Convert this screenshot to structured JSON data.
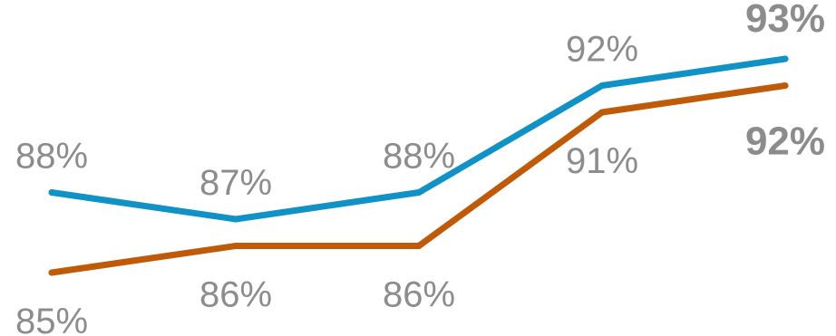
{
  "chart_data": {
    "type": "line",
    "title": "",
    "xlabel": "",
    "ylabel": "",
    "categories": [
      "",
      "",
      "",
      "",
      ""
    ],
    "ylim": [
      84,
      94
    ],
    "grid": false,
    "legend": "none",
    "series": [
      {
        "values": [
          88,
          87,
          88,
          92,
          93
        ],
        "labels": [
          "88%",
          "87%",
          "88%",
          "92%",
          "93%"
        ],
        "color": "#1192c6",
        "label_position": "above"
      },
      {
        "values": [
          85,
          86,
          86,
          91,
          92
        ],
        "labels": [
          "85%",
          "86%",
          "86%",
          "91%",
          "92%"
        ],
        "color": "#bf5a08",
        "label_position": "below"
      }
    ],
    "label_color": "#8c8c8c"
  }
}
